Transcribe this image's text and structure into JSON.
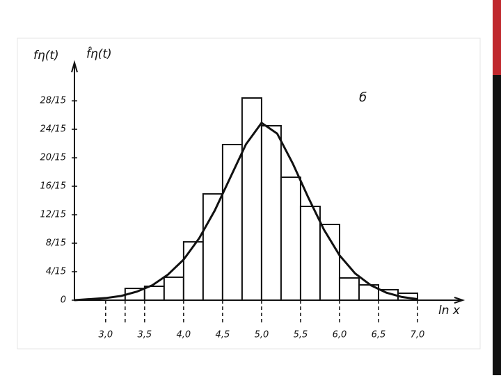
{
  "chart_data": {
    "type": "histogram",
    "y_labels": [
      "fη(t)",
      "f̂η(t)"
    ],
    "x_label": "ln x",
    "annotation": "б",
    "bins": [
      3.25,
      3.5,
      3.75,
      4.0,
      4.25,
      4.5,
      4.75,
      5.0,
      5.25,
      5.5,
      5.75,
      6.0,
      6.25,
      6.5,
      6.75,
      7.0
    ],
    "values": [
      0.11,
      0.13,
      0.215,
      0.546,
      0.995,
      1.457,
      1.893,
      1.633,
      1.151,
      0.878,
      0.709,
      0.208,
      0.143,
      0.098,
      0.065
    ],
    "color": "#ffffff",
    "curve": {
      "x": [
        2.6,
        2.8,
        3.0,
        3.2,
        3.4,
        3.6,
        3.8,
        4.0,
        4.2,
        4.4,
        4.6,
        4.8,
        5.0,
        5.2,
        5.4,
        5.6,
        5.8,
        6.0,
        6.2,
        6.4,
        6.6,
        6.8,
        7.0
      ],
      "values": [
        0.0,
        0.01,
        0.02,
        0.04,
        0.08,
        0.14,
        0.24,
        0.38,
        0.58,
        0.84,
        1.15,
        1.46,
        1.66,
        1.56,
        1.28,
        0.96,
        0.66,
        0.42,
        0.25,
        0.14,
        0.07,
        0.03,
        0.01
      ],
      "color": "#111111"
    },
    "xlim": [
      2.6,
      7.58
    ],
    "ylim": [
      0,
      2.16
    ],
    "xticks": [
      {
        "value": 3.0,
        "label": "3,0"
      },
      {
        "value": 3.5,
        "label": "3,5"
      },
      {
        "value": 4.0,
        "label": "4,0"
      },
      {
        "value": 4.5,
        "label": "4,5"
      },
      {
        "value": 5.0,
        "label": "5,0"
      },
      {
        "value": 5.5,
        "label": "5,5"
      },
      {
        "value": 6.0,
        "label": "6,0"
      },
      {
        "value": 6.5,
        "label": "6,5"
      },
      {
        "value": 7.0,
        "label": "7,0"
      }
    ],
    "yticks": [
      0,
      {
        "value": 0.2667,
        "label": "4/15"
      },
      {
        "value": 0.5333,
        "label": "8/15"
      },
      {
        "value": 0.8,
        "label": "12/15"
      },
      {
        "value": 1.0667,
        "label": "16/15"
      },
      {
        "value": 1.3333,
        "label": "20/15"
      },
      {
        "value": 1.6,
        "label": "24/15"
      },
      {
        "value": 1.8667,
        "label": "28/15"
      }
    ]
  }
}
